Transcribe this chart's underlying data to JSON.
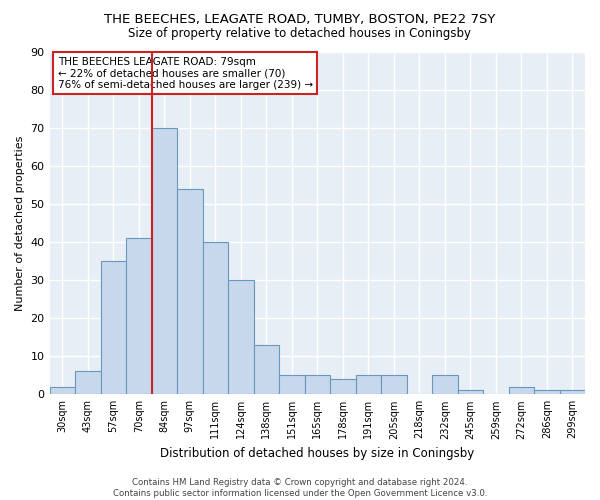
{
  "title": "THE BEECHES, LEAGATE ROAD, TUMBY, BOSTON, PE22 7SY",
  "subtitle": "Size of property relative to detached houses in Coningsby",
  "xlabel": "Distribution of detached houses by size in Coningsby",
  "ylabel": "Number of detached properties",
  "bar_color": "#c8d8ec",
  "bar_edgecolor": "#6699bb",
  "bg_color": "#e8eef6",
  "grid_color": "white",
  "categories": [
    "30sqm",
    "43sqm",
    "57sqm",
    "70sqm",
    "84sqm",
    "97sqm",
    "111sqm",
    "124sqm",
    "138sqm",
    "151sqm",
    "165sqm",
    "178sqm",
    "191sqm",
    "205sqm",
    "218sqm",
    "232sqm",
    "245sqm",
    "259sqm",
    "272sqm",
    "286sqm",
    "299sqm"
  ],
  "values": [
    2,
    6,
    35,
    41,
    70,
    54,
    40,
    30,
    13,
    5,
    5,
    4,
    5,
    5,
    0,
    5,
    1,
    0,
    2,
    1,
    1
  ],
  "ylim": [
    0,
    90
  ],
  "yticks": [
    0,
    10,
    20,
    30,
    40,
    50,
    60,
    70,
    80,
    90
  ],
  "property_line_index": 4,
  "annotation_title": "THE BEECHES LEAGATE ROAD: 79sqm",
  "annotation_line1": "← 22% of detached houses are smaller (70)",
  "annotation_line2": "76% of semi-detached houses are larger (239) →",
  "footer_line1": "Contains HM Land Registry data © Crown copyright and database right 2024.",
  "footer_line2": "Contains public sector information licensed under the Open Government Licence v3.0."
}
